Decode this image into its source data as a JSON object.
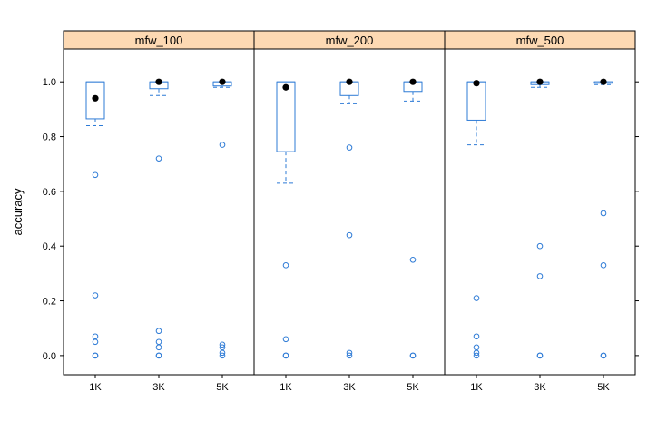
{
  "chart_data": {
    "type": "box",
    "ylabel": "accuracy",
    "xlabel": "",
    "ylim": [
      -0.07,
      1.12
    ],
    "yticks": [
      "0.0",
      "0.2",
      "0.4",
      "0.6",
      "0.8",
      "1.0"
    ],
    "categories": [
      "1K",
      "3K",
      "5K"
    ],
    "colors": {
      "box": "#2e7bd6",
      "median": "#000000",
      "strip": "#fdd9b3"
    },
    "panels": [
      {
        "name": "mfw_100",
        "boxes": [
          {
            "category": "1K",
            "q1": 0.865,
            "median": 0.94,
            "q3": 1.0,
            "whisker_low": 0.84,
            "whisker_high": 1.0,
            "outliers": [
              0.66,
              0.22,
              0.07,
              0.05,
              0.0,
              0.0
            ]
          },
          {
            "category": "3K",
            "q1": 0.975,
            "median": 1.0,
            "q3": 1.0,
            "whisker_low": 0.95,
            "whisker_high": 1.0,
            "outliers": [
              0.72,
              0.09,
              0.05,
              0.03,
              0.0,
              0.0
            ]
          },
          {
            "category": "5K",
            "q1": 0.985,
            "median": 1.0,
            "q3": 1.0,
            "whisker_low": 0.98,
            "whisker_high": 1.0,
            "outliers": [
              0.77,
              0.04,
              0.03,
              0.01,
              0.0
            ]
          }
        ]
      },
      {
        "name": "mfw_200",
        "boxes": [
          {
            "category": "1K",
            "q1": 0.745,
            "median": 0.98,
            "q3": 1.0,
            "whisker_low": 0.63,
            "whisker_high": 1.0,
            "outliers": [
              0.33,
              0.06,
              0.0,
              0.0
            ]
          },
          {
            "category": "3K",
            "q1": 0.95,
            "median": 1.0,
            "q3": 1.0,
            "whisker_low": 0.92,
            "whisker_high": 1.0,
            "outliers": [
              0.76,
              0.44,
              0.01,
              0.0
            ]
          },
          {
            "category": "5K",
            "q1": 0.965,
            "median": 1.0,
            "q3": 1.0,
            "whisker_low": 0.93,
            "whisker_high": 1.0,
            "outliers": [
              0.35,
              0.0,
              0.0
            ]
          }
        ]
      },
      {
        "name": "mfw_500",
        "boxes": [
          {
            "category": "1K",
            "q1": 0.86,
            "median": 0.995,
            "q3": 1.0,
            "whisker_low": 0.77,
            "whisker_high": 1.0,
            "outliers": [
              0.21,
              0.07,
              0.03,
              0.01,
              0.0
            ]
          },
          {
            "category": "3K",
            "q1": 0.99,
            "median": 1.0,
            "q3": 1.0,
            "whisker_low": 0.98,
            "whisker_high": 1.0,
            "outliers": [
              0.4,
              0.29,
              0.0,
              0.0
            ]
          },
          {
            "category": "5K",
            "q1": 0.995,
            "median": 1.0,
            "q3": 1.0,
            "whisker_low": 0.99,
            "whisker_high": 1.0,
            "outliers": [
              0.52,
              0.33,
              0.0,
              0.0
            ]
          }
        ]
      }
    ]
  }
}
